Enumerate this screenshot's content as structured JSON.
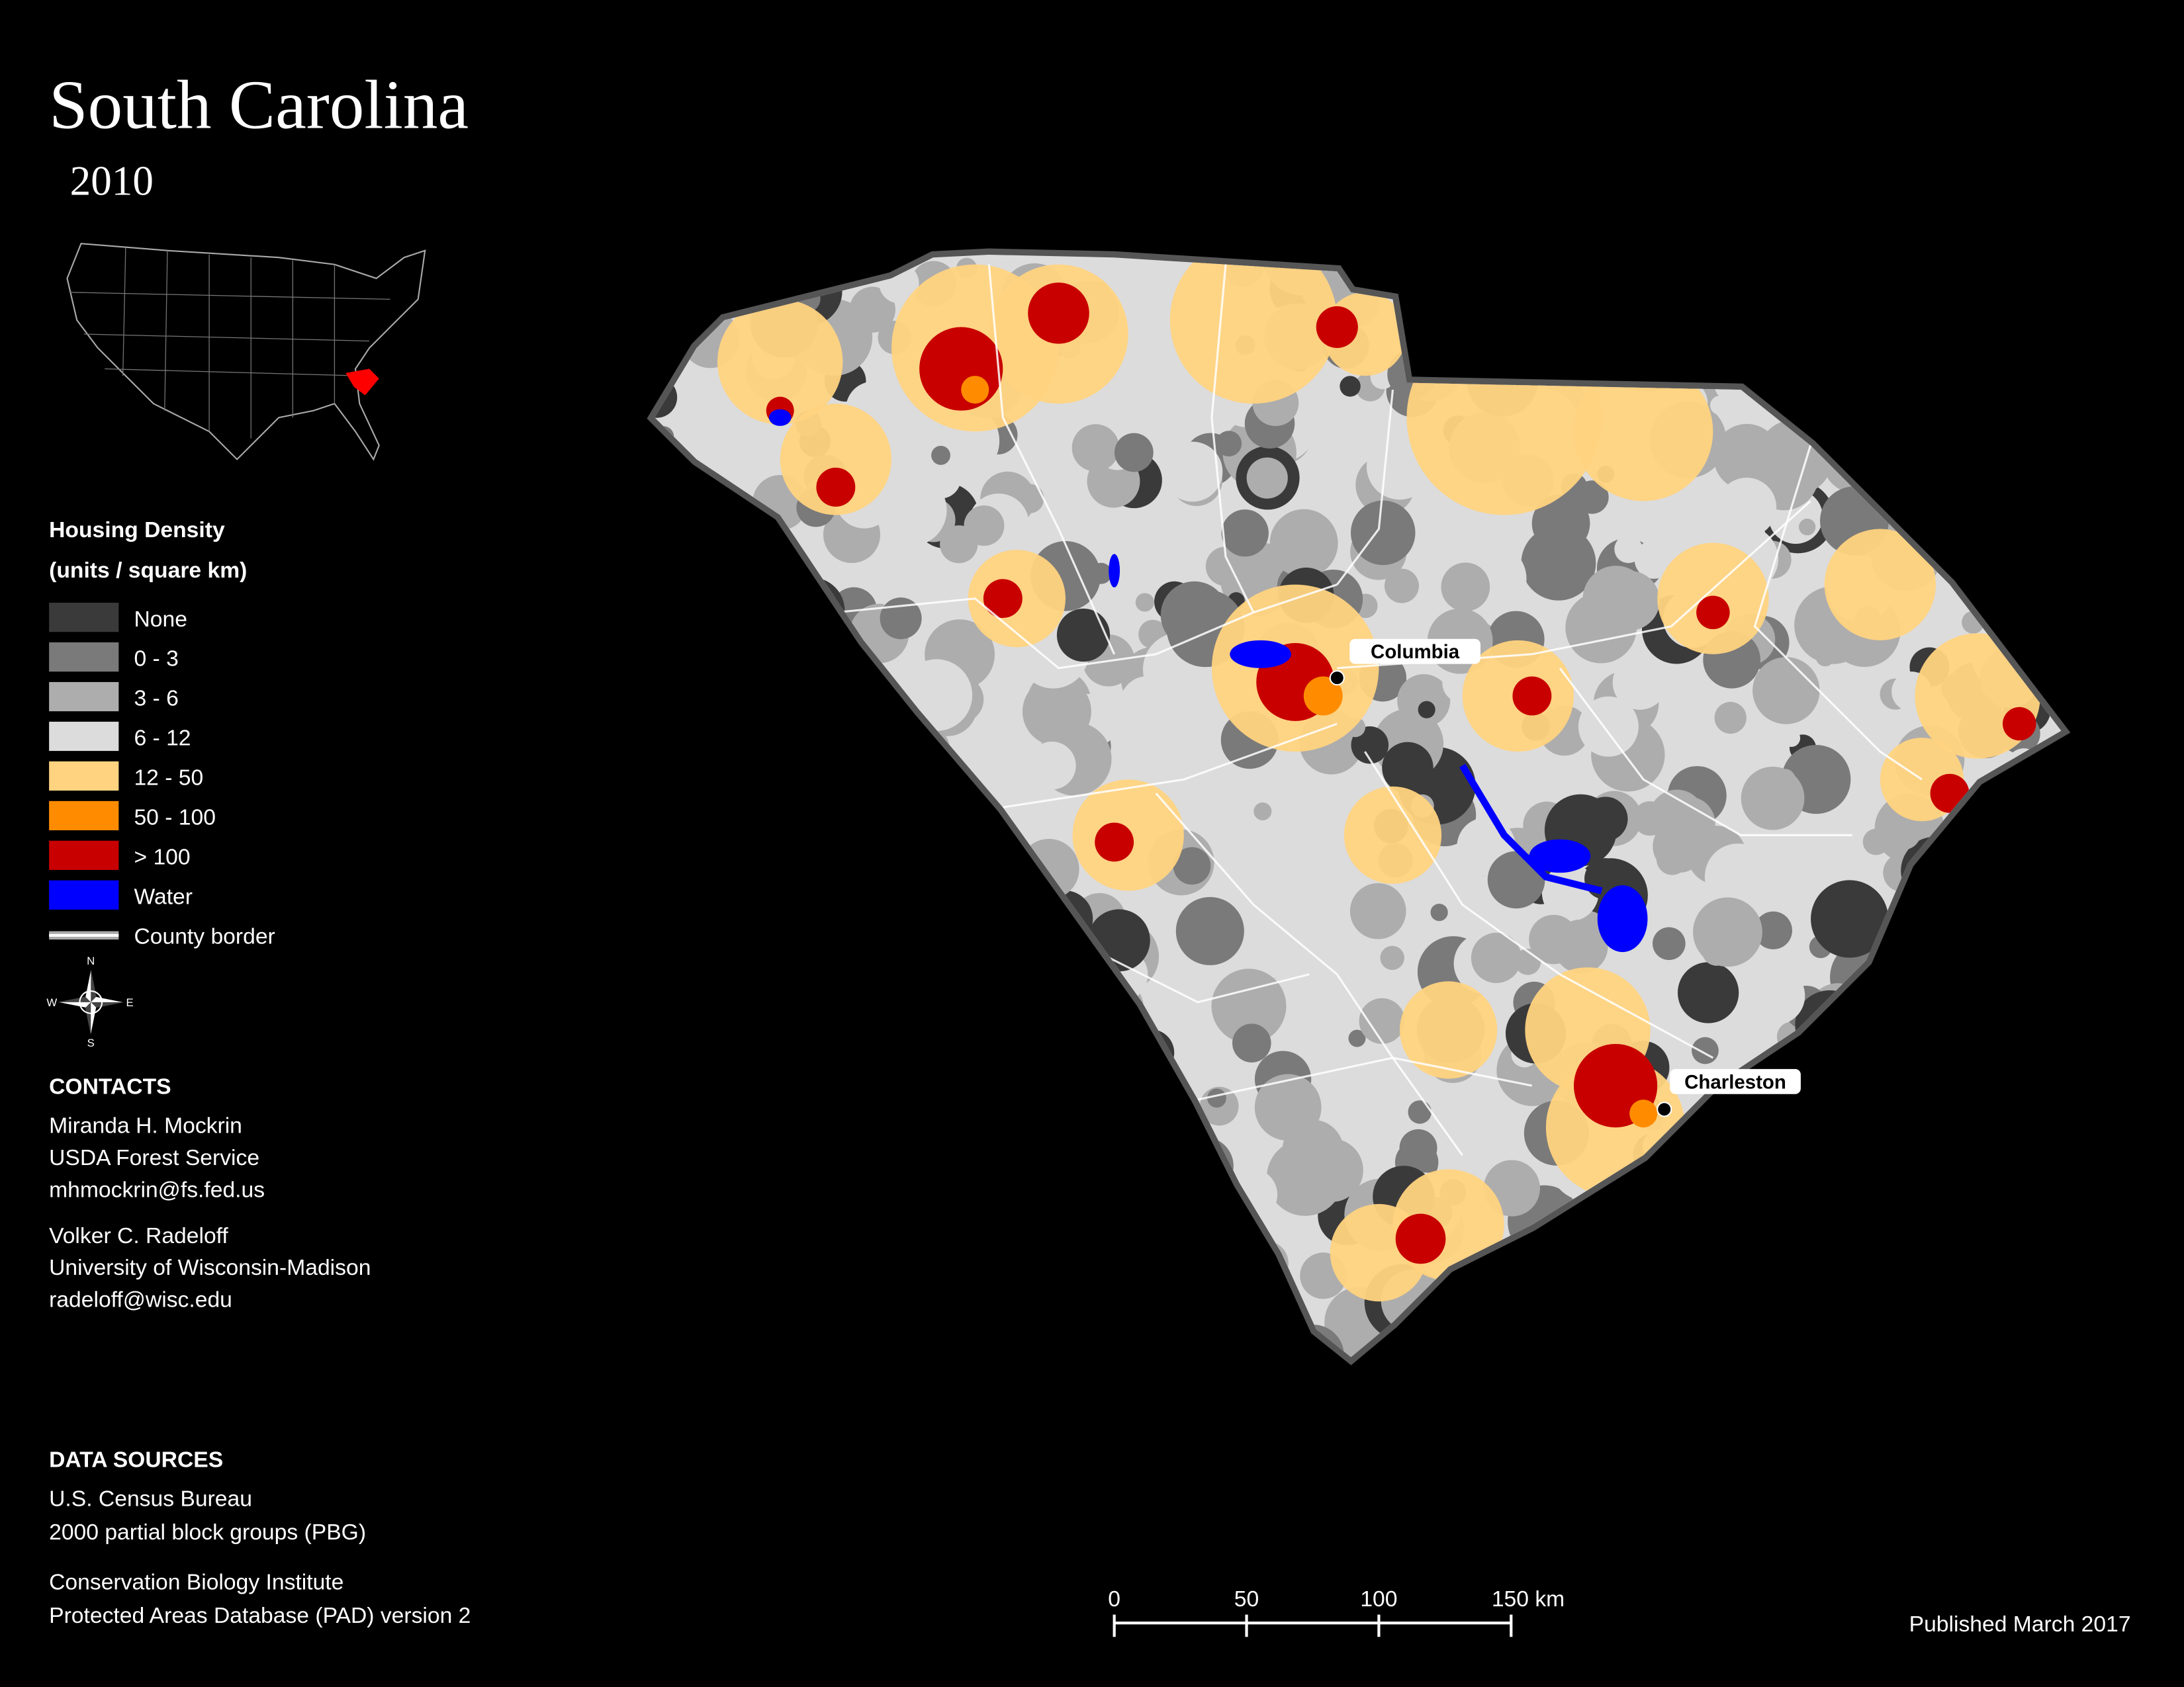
{
  "title": "South Carolina",
  "subtitle": "2010",
  "legend": {
    "title": [
      "Housing Density",
      "(units / square km)"
    ],
    "items": [
      {
        "label": "None",
        "color": "#3a3a3a"
      },
      {
        "label": "0 - 3",
        "color": "#7a7a7a"
      },
      {
        "label": "3 - 6",
        "color": "#adadad"
      },
      {
        "label": "6 - 12",
        "color": "#dcdcdc"
      },
      {
        "label": "12 - 50",
        "color": "#ffd380"
      },
      {
        "label": "50 - 100",
        "color": "#ff8c00"
      },
      {
        "label": "> 100",
        "color": "#c80000"
      },
      {
        "label": "Water",
        "color": "#0000ff"
      }
    ],
    "county_border": {
      "label": "County border",
      "color": "#ffffff"
    }
  },
  "compass": {
    "n": "N",
    "e": "E",
    "s": "S",
    "w": "W"
  },
  "cities": [
    {
      "name": "Columbia"
    },
    {
      "name": "Charleston"
    }
  ],
  "contacts": {
    "heading": "CONTACTS",
    "people": [
      [
        "Miranda H. Mockrin",
        "USDA Forest Service",
        "mhmockrin@fs.fed.us"
      ],
      [
        "Volker C. Radeloff",
        "University of Wisconsin-Madison",
        "radeloff@wisc.edu"
      ]
    ]
  },
  "data_sources": {
    "heading": "DATA SOURCES",
    "entries": [
      [
        "U.S. Census Bureau",
        "2000 partial block groups (PBG)"
      ],
      [
        "Conservation Biology Institute",
        "Protected Areas Database (PAD) version 2"
      ]
    ]
  },
  "scale_bar": {
    "xlim": [
      0,
      150
    ],
    "ticks": [
      0,
      50,
      100,
      {
        "value": 150,
        "label": "150 km"
      }
    ]
  },
  "published": "Published March 2017"
}
